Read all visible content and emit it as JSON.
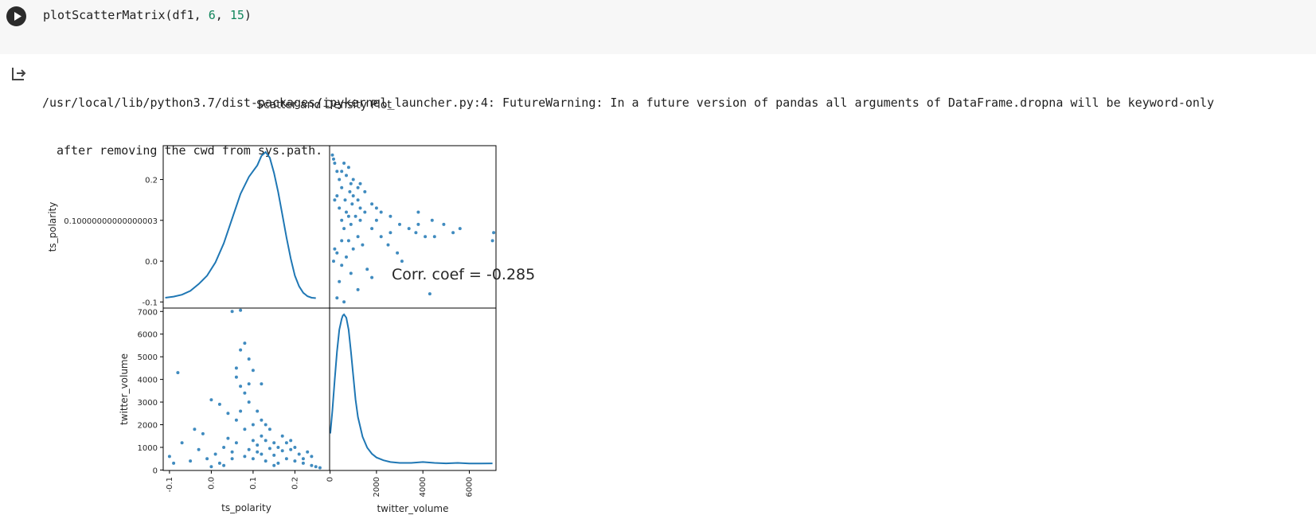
{
  "cell": {
    "code": {
      "func": "plotScatterMatrix(df1, ",
      "arg1": "6",
      "sep": ", ",
      "arg2": "15",
      "close": ")"
    },
    "run_icon": "play-icon"
  },
  "output": {
    "icon": "output-arrow-icon",
    "warning_line1": "/usr/local/lib/python3.7/dist-packages/ipykernel_launcher.py:4: FutureWarning: In a future version of pandas all arguments of DataFrame.dropna will be keyword-only",
    "warning_line2": "after removing the cwd from sys.path."
  },
  "figure": {
    "title": "Scatter and Density Plot",
    "annotation": "Corr. coef = -0.285",
    "colors": {
      "series": "#1f77b4",
      "axes": "#000000",
      "text": "#262626"
    }
  },
  "chart_data": {
    "type": "scatter",
    "title": "Scatter and Density Plot",
    "variables": [
      "ts_polarity",
      "twitter_volume"
    ],
    "correlation": -0.285,
    "axes": {
      "ts_polarity": {
        "label": "ts_polarity",
        "range": [
          -0.115,
          0.283
        ],
        "y_ticks": [
          {
            "value": 0.2,
            "label": "0.2"
          },
          {
            "value": 0.1,
            "label": "0.10000000000000003"
          },
          {
            "value": 0.0,
            "label": "0.0"
          },
          {
            "value": -0.1,
            "label": "-0.1"
          }
        ],
        "x_ticks": [
          {
            "value": -0.1,
            "label": "-0.1"
          },
          {
            "value": 0.0,
            "label": "0.0"
          },
          {
            "value": 0.1,
            "label": "0.1"
          },
          {
            "value": 0.2,
            "label": "0.2"
          }
        ]
      },
      "twitter_volume": {
        "label": "twitter_volume",
        "range": [
          -20,
          7150
        ],
        "y_ticks": [
          {
            "value": 0,
            "label": "0"
          },
          {
            "value": 1000,
            "label": "1000"
          },
          {
            "value": 2000,
            "label": "2000"
          },
          {
            "value": 3000,
            "label": "3000"
          },
          {
            "value": 4000,
            "label": "4000"
          },
          {
            "value": 5000,
            "label": "5000"
          },
          {
            "value": 6000,
            "label": "6000"
          },
          {
            "value": 7000,
            "label": "7000"
          }
        ],
        "x_ticks": [
          {
            "value": 0,
            "label": "0"
          },
          {
            "value": 2000,
            "label": "2000"
          },
          {
            "value": 4000,
            "label": "4000"
          },
          {
            "value": 6000,
            "label": "6000"
          }
        ]
      }
    },
    "density_ts_polarity": [
      [
        -0.11,
        0.02
      ],
      [
        -0.09,
        0.05
      ],
      [
        -0.07,
        0.1
      ],
      [
        -0.05,
        0.2
      ],
      [
        -0.03,
        0.38
      ],
      [
        -0.01,
        0.6
      ],
      [
        0.01,
        0.95
      ],
      [
        0.03,
        1.45
      ],
      [
        0.05,
        2.1
      ],
      [
        0.07,
        2.75
      ],
      [
        0.09,
        3.2
      ],
      [
        0.1,
        3.35
      ],
      [
        0.11,
        3.5
      ],
      [
        0.12,
        3.75
      ],
      [
        0.13,
        3.85
      ],
      [
        0.14,
        3.7
      ],
      [
        0.15,
        3.3
      ],
      [
        0.16,
        2.8
      ],
      [
        0.17,
        2.2
      ],
      [
        0.18,
        1.6
      ],
      [
        0.19,
        1.05
      ],
      [
        0.2,
        0.6
      ],
      [
        0.21,
        0.32
      ],
      [
        0.22,
        0.15
      ],
      [
        0.23,
        0.06
      ],
      [
        0.24,
        0.02
      ],
      [
        0.25,
        0.01
      ]
    ],
    "density_twitter_volume": [
      [
        10,
        1.55
      ],
      [
        100,
        2.6
      ],
      [
        200,
        4.0
      ],
      [
        300,
        5.3
      ],
      [
        400,
        6.3
      ],
      [
        500,
        6.8
      ],
      [
        550,
        6.95
      ],
      [
        600,
        7.0
      ],
      [
        700,
        6.85
      ],
      [
        800,
        6.3
      ],
      [
        900,
        5.3
      ],
      [
        1000,
        4.2
      ],
      [
        1100,
        3.1
      ],
      [
        1200,
        2.3
      ],
      [
        1400,
        1.4
      ],
      [
        1600,
        0.9
      ],
      [
        1800,
        0.62
      ],
      [
        2000,
        0.45
      ],
      [
        2300,
        0.32
      ],
      [
        2600,
        0.24
      ],
      [
        3000,
        0.2
      ],
      [
        3500,
        0.2
      ],
      [
        4000,
        0.24
      ],
      [
        4500,
        0.2
      ],
      [
        5000,
        0.18
      ],
      [
        5500,
        0.2
      ],
      [
        6000,
        0.17
      ],
      [
        6500,
        0.17
      ],
      [
        7000,
        0.18
      ]
    ],
    "points": [
      [
        0.02,
        300
      ],
      [
        0.05,
        800
      ],
      [
        0.06,
        1200
      ],
      [
        0.08,
        600
      ],
      [
        0.09,
        900
      ],
      [
        0.1,
        500
      ],
      [
        0.11,
        1100
      ],
      [
        0.12,
        700
      ],
      [
        0.13,
        400
      ],
      [
        0.14,
        950
      ],
      [
        0.15,
        650
      ],
      [
        0.16,
        300
      ],
      [
        0.17,
        850
      ],
      [
        0.12,
        1500
      ],
      [
        0.08,
        1800
      ],
      [
        0.06,
        2200
      ],
      [
        0.07,
        2600
      ],
      [
        0.1,
        2000
      ],
      [
        0.04,
        1400
      ],
      [
        0.03,
        1000
      ],
      [
        0.01,
        700
      ],
      [
        -0.01,
        500
      ],
      [
        -0.03,
        900
      ],
      [
        -0.05,
        400
      ],
      [
        -0.07,
        1200
      ],
      [
        -0.09,
        300
      ],
      [
        -0.1,
        600
      ],
      [
        0.18,
        500
      ],
      [
        0.19,
        900
      ],
      [
        0.2,
        400
      ],
      [
        0.21,
        700
      ],
      [
        0.22,
        300
      ],
      [
        0.23,
        800
      ],
      [
        0.24,
        200
      ],
      [
        0.25,
        150
      ],
      [
        0.26,
        100
      ],
      [
        0.14,
        1800
      ],
      [
        0.12,
        2200
      ],
      [
        0.11,
        2600
      ],
      [
        0.09,
        3000
      ],
      [
        0.08,
        3400
      ],
      [
        0.07,
        3700
      ],
      [
        0.09,
        3800
      ],
      [
        0.12,
        3800
      ],
      [
        0.06,
        4100
      ],
      [
        0.1,
        4400
      ],
      [
        0.06,
        4500
      ],
      [
        0.09,
        4900
      ],
      [
        0.07,
        5300
      ],
      [
        0.08,
        5600
      ],
      [
        0.05,
        7000
      ],
      [
        0.07,
        7050
      ],
      [
        -0.08,
        4300
      ],
      [
        0.0,
        3100
      ],
      [
        0.02,
        2900
      ],
      [
        0.04,
        2500
      ],
      [
        0.15,
        1200
      ],
      [
        0.16,
        1000
      ],
      [
        0.13,
        1300
      ],
      [
        0.11,
        800
      ],
      [
        0.1,
        1300
      ],
      [
        0.05,
        500
      ],
      [
        0.03,
        200
      ],
      [
        0.0,
        150
      ],
      [
        0.15,
        200
      ],
      [
        0.18,
        1200
      ],
      [
        0.2,
        1000
      ],
      [
        0.22,
        500
      ],
      [
        0.24,
        600
      ],
      [
        -0.02,
        1600
      ],
      [
        -0.04,
        1800
      ],
      [
        0.13,
        2000
      ],
      [
        0.19,
        1300
      ],
      [
        0.17,
        1500
      ]
    ]
  }
}
